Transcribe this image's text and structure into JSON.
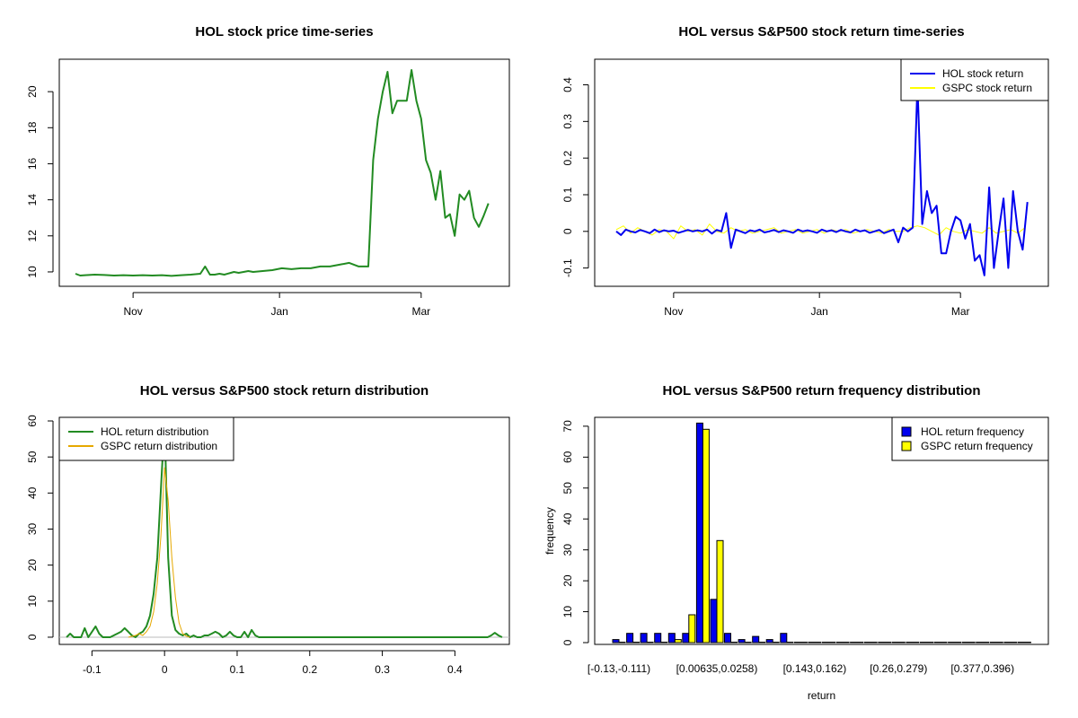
{
  "chart_data": [
    {
      "type": "line",
      "title": "HOL stock price time-series",
      "xlabel": "",
      "ylabel": "",
      "x_ticks": [
        "Nov",
        "Jan",
        "Mar"
      ],
      "y_ticks": [
        10,
        12,
        14,
        16,
        18,
        20
      ],
      "xlim_days": [
        0,
        174
      ],
      "ylim": [
        9.5,
        21.6
      ],
      "colors": {
        "line": "#228B22"
      },
      "series": [
        {
          "x_days": [
            0,
            2,
            4,
            8,
            12,
            16,
            20,
            24,
            28,
            32,
            36,
            40,
            44,
            48,
            52,
            54,
            56,
            58,
            60,
            62,
            66,
            68,
            70,
            72,
            74,
            78,
            82,
            86,
            90,
            94,
            98,
            102,
            106,
            110,
            114,
            118,
            122,
            124,
            126,
            128,
            130,
            132,
            134,
            136,
            138,
            140,
            142,
            144,
            146,
            148,
            150,
            152,
            154,
            156,
            158,
            160,
            162,
            164,
            166,
            168,
            170,
            172
          ],
          "values": [
            9.9,
            9.8,
            9.82,
            9.85,
            9.83,
            9.8,
            9.82,
            9.8,
            9.82,
            9.8,
            9.82,
            9.78,
            9.82,
            9.85,
            9.9,
            10.3,
            9.85,
            9.85,
            9.9,
            9.85,
            10.0,
            9.95,
            10.0,
            10.05,
            10.0,
            10.05,
            10.1,
            10.2,
            10.15,
            10.2,
            10.2,
            10.3,
            10.3,
            10.4,
            10.5,
            10.3,
            10.3,
            16.2,
            18.5,
            20.0,
            21.1,
            18.8,
            19.5,
            19.5,
            19.5,
            21.2,
            19.5,
            18.5,
            16.2,
            15.5,
            14.0,
            15.6,
            13.0,
            13.2,
            12.0,
            14.3,
            14.0,
            14.5,
            13.0,
            12.5,
            13.1,
            13.8
          ]
        }
      ]
    },
    {
      "type": "line",
      "title": "HOL versus S&P500 stock return time-series",
      "xlabel": "",
      "ylabel": "",
      "x_ticks": [
        "Nov",
        "Jan",
        "Mar"
      ],
      "y_ticks": [
        -0.1,
        0.0,
        0.1,
        0.2,
        0.3,
        0.4
      ],
      "xlim_days": [
        0,
        174
      ],
      "ylim": [
        -0.145,
        0.46
      ],
      "legend": {
        "placement": "top-right",
        "entries": [
          "HOL stock return",
          "GSPC stock return"
        ]
      },
      "series": [
        {
          "name": "HOL stock return",
          "color": "#0000EE",
          "x_days": [
            0,
            2,
            4,
            6,
            8,
            10,
            12,
            14,
            16,
            18,
            20,
            22,
            24,
            26,
            28,
            30,
            32,
            34,
            36,
            38,
            40,
            42,
            44,
            46,
            48,
            50,
            52,
            54,
            56,
            58,
            60,
            62,
            64,
            66,
            68,
            70,
            72,
            74,
            76,
            78,
            80,
            82,
            84,
            86,
            88,
            90,
            92,
            94,
            96,
            98,
            100,
            102,
            104,
            106,
            108,
            110,
            112,
            114,
            116,
            118,
            120,
            122,
            124,
            126,
            128,
            130,
            132,
            134,
            136,
            138,
            140,
            142,
            144,
            146,
            148,
            150,
            152,
            154,
            156,
            158,
            160,
            162,
            164,
            166,
            168,
            170,
            172
          ],
          "values": [
            0.0,
            -0.01,
            0.005,
            0.0,
            -0.003,
            0.004,
            0.0,
            -0.005,
            0.005,
            -0.002,
            0.003,
            0.0,
            0.002,
            -0.004,
            0.0,
            0.004,
            0.0,
            0.003,
            0.0,
            0.005,
            -0.006,
            0.004,
            0.0,
            0.05,
            -0.045,
            0.005,
            0.0,
            -0.005,
            0.003,
            0.0,
            0.005,
            -0.003,
            0.0,
            0.004,
            -0.002,
            0.003,
            0.0,
            -0.004,
            0.005,
            0.0,
            0.003,
            0.0,
            -0.004,
            0.005,
            0.0,
            0.003,
            -0.002,
            0.004,
            0.0,
            -0.003,
            0.005,
            0.0,
            0.003,
            -0.004,
            0.0,
            0.004,
            -0.005,
            0.0,
            0.005,
            -0.03,
            0.01,
            0.0,
            0.01,
            0.4,
            0.02,
            0.11,
            0.05,
            0.07,
            -0.06,
            -0.06,
            0.0,
            0.04,
            0.03,
            -0.02,
            0.02,
            -0.08,
            -0.065,
            -0.12,
            0.12,
            -0.1,
            0.0,
            0.09,
            -0.1,
            0.11,
            0.0,
            -0.05,
            0.08
          ]
        },
        {
          "name": "GSPC stock return",
          "color": "#FFFF00",
          "x_days": [
            0,
            3,
            6,
            9,
            12,
            15,
            18,
            21,
            24,
            27,
            30,
            33,
            36,
            39,
            42,
            45,
            48,
            51,
            54,
            57,
            60,
            63,
            66,
            69,
            72,
            75,
            78,
            81,
            84,
            87,
            90,
            93,
            96,
            99,
            102,
            105,
            108,
            111,
            114,
            117,
            120,
            123,
            126,
            129,
            132,
            135,
            138,
            141,
            144,
            147,
            150,
            153,
            156,
            159,
            162,
            165,
            168,
            171
          ],
          "values": [
            0.005,
            0.015,
            -0.005,
            0.01,
            0.0,
            -0.01,
            0.005,
            0.0,
            -0.02,
            0.015,
            0.0,
            0.005,
            -0.01,
            0.02,
            0.0,
            -0.005,
            0.01,
            0.0,
            0.005,
            -0.005,
            0.0,
            0.005,
            0.01,
            -0.005,
            0.0,
            0.005,
            -0.005,
            0.0,
            0.005,
            -0.005,
            0.005,
            0.0,
            0.005,
            -0.005,
            0.0,
            0.005,
            0.0,
            -0.005,
            0.005,
            0.0,
            0.0,
            0.01,
            0.015,
            0.01,
            0.0,
            -0.01,
            0.01,
            0.0,
            -0.005,
            0.005,
            0.0,
            -0.005,
            0.01,
            -0.005,
            0.0,
            0.005,
            -0.005,
            0.01
          ]
        }
      ]
    },
    {
      "type": "line",
      "title": "HOL versus S&P500 stock return distribution",
      "xlabel": "",
      "ylabel": "",
      "x_ticks": [
        -0.1,
        0.0,
        0.1,
        0.2,
        0.3,
        0.4
      ],
      "y_ticks": [
        0,
        10,
        20,
        30,
        40,
        50,
        60
      ],
      "xlim": [
        -0.145,
        0.475
      ],
      "ylim": [
        -2,
        61
      ],
      "legend": {
        "placement": "top-left",
        "entries": [
          "HOL return distribution",
          "GSPC return distribution"
        ]
      },
      "series": [
        {
          "name": "HOL return distribution",
          "color": "#228B22",
          "x": [
            -0.135,
            -0.13,
            -0.125,
            -0.12,
            -0.115,
            -0.11,
            -0.105,
            -0.1,
            -0.095,
            -0.09,
            -0.085,
            -0.08,
            -0.075,
            -0.07,
            -0.065,
            -0.06,
            -0.055,
            -0.05,
            -0.045,
            -0.04,
            -0.035,
            -0.03,
            -0.025,
            -0.02,
            -0.015,
            -0.01,
            -0.005,
            0.0,
            0.005,
            0.01,
            0.015,
            0.02,
            0.025,
            0.03,
            0.035,
            0.04,
            0.045,
            0.05,
            0.055,
            0.06,
            0.065,
            0.07,
            0.075,
            0.08,
            0.085,
            0.09,
            0.095,
            0.1,
            0.105,
            0.11,
            0.115,
            0.12,
            0.125,
            0.13,
            0.2,
            0.3,
            0.4,
            0.445,
            0.45,
            0.455,
            0.46,
            0.465
          ],
          "values": [
            0,
            1,
            0,
            0,
            0,
            2.5,
            0,
            1.5,
            3,
            1,
            0,
            0,
            0,
            0.5,
            1,
            1.5,
            2.5,
            1.5,
            0.5,
            0,
            1,
            1.5,
            3,
            6,
            12,
            22,
            41,
            60,
            22,
            6,
            2,
            1,
            0.5,
            1,
            0,
            0.5,
            0,
            0,
            0.5,
            0.5,
            1,
            1.5,
            1,
            0,
            0.5,
            1.5,
            0.5,
            0,
            0,
            1.5,
            0,
            2,
            0.5,
            0,
            0,
            0,
            0,
            0,
            0.5,
            1.2,
            0.5,
            0
          ]
        },
        {
          "name": "GSPC return distribution",
          "color": "#E6A800",
          "x": [
            -0.05,
            -0.04,
            -0.035,
            -0.03,
            -0.025,
            -0.02,
            -0.015,
            -0.01,
            -0.005,
            0.0,
            0.005,
            0.01,
            0.015,
            0.02,
            0.025,
            0.03,
            0.035
          ],
          "values": [
            0,
            0.5,
            1,
            0.5,
            1.5,
            3,
            7,
            15,
            28,
            47,
            38,
            22,
            11,
            4,
            1,
            0.3,
            0
          ]
        }
      ]
    },
    {
      "type": "bar",
      "title": "HOL versus S&P500 return frequency distribution",
      "xlabel": "return",
      "ylabel": "frequency",
      "y_ticks": [
        0,
        10,
        20,
        30,
        40,
        50,
        60,
        70
      ],
      "ylim": [
        0,
        72
      ],
      "x_tick_labels": [
        "[-0.13,-0.111)",
        "[0.00635,0.0258)",
        "[0.143,0.162)",
        "[0.26,0.279)",
        "[0.377,0.396)"
      ],
      "x_tick_bins": [
        0,
        7,
        14,
        20,
        26
      ],
      "bin_count": 30,
      "legend": {
        "placement": "top-right",
        "entries": [
          "HOL return frequency",
          "GSPC return frequency"
        ]
      },
      "series": [
        {
          "name": "HOL return frequency",
          "color": "#0000EE",
          "values": [
            1,
            3,
            3,
            3,
            3,
            3,
            71,
            14,
            3,
            1,
            2,
            1,
            3,
            0,
            0,
            0,
            0,
            0,
            0,
            0,
            0,
            0,
            0,
            0,
            0,
            0,
            0,
            0,
            0,
            0
          ]
        },
        {
          "name": "GSPC return frequency",
          "color": "#FFFF00",
          "values": [
            0,
            0,
            0,
            0,
            1,
            9,
            69,
            33,
            0,
            0,
            0,
            0,
            0,
            0,
            0,
            0,
            0,
            0,
            0,
            0,
            0,
            0,
            0,
            0,
            0,
            0,
            0,
            0,
            0,
            0
          ]
        }
      ]
    }
  ]
}
